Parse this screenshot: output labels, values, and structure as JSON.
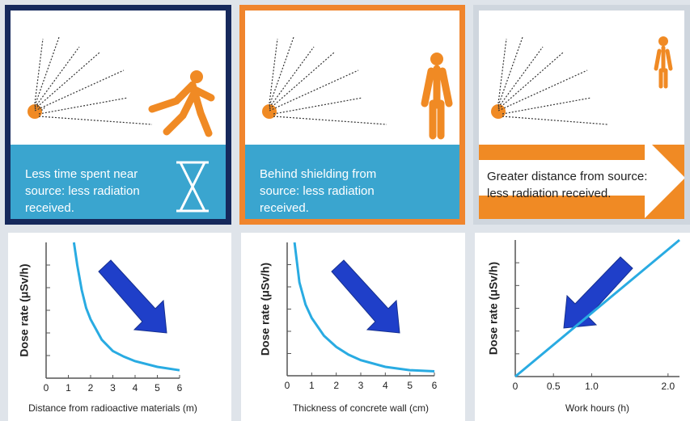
{
  "panels": [
    {
      "caption": "Less time spent near source: less radiation received."
    },
    {
      "caption": "Behind shielding from source: less radiation received."
    },
    {
      "caption": "Greater distance from source: less radiation received."
    }
  ],
  "chart_data": [
    {
      "type": "line",
      "ylabel": "Dose rate (μSv/h)",
      "xlabel": "Distance from radioactive materials (m)",
      "x": [
        1.25,
        1.4,
        1.6,
        1.8,
        2,
        2.5,
        3,
        3.5,
        4,
        5,
        6
      ],
      "values": [
        6,
        5.0,
        3.9,
        3.1,
        2.6,
        1.7,
        1.2,
        0.95,
        0.75,
        0.5,
        0.35
      ],
      "color": "#29abe2",
      "xlim": [
        0,
        6
      ],
      "ylim": [
        0,
        6
      ],
      "xticks": [
        0,
        1,
        2,
        3,
        4,
        5,
        6
      ]
    },
    {
      "type": "line",
      "ylabel": "Dose rate (μSv/h)",
      "xlabel": "Thickness of concrete wall (cm)",
      "x": [
        0.3,
        0.5,
        0.75,
        1,
        1.5,
        2,
        2.5,
        3,
        4,
        5,
        6
      ],
      "values": [
        6,
        4.2,
        3.2,
        2.6,
        1.8,
        1.3,
        0.95,
        0.7,
        0.4,
        0.25,
        0.2
      ],
      "color": "#29abe2",
      "xlim": [
        0,
        6
      ],
      "ylim": [
        0,
        6
      ],
      "xticks": [
        0,
        1,
        2,
        3,
        4,
        5,
        6
      ]
    },
    {
      "type": "line",
      "ylabel": "Dose rate (μSv/h)",
      "xlabel": "Work hours (h)",
      "x": [
        0,
        2.15
      ],
      "values": [
        0,
        2.2
      ],
      "color": "#29abe2",
      "xlim": [
        0,
        2.15
      ],
      "ylim": [
        0,
        2.2
      ],
      "xticks": [
        0,
        0.5,
        {
          "value": 1,
          "label": "1.0"
        },
        {
          "value": 2,
          "label": "2.0"
        }
      ]
    }
  ]
}
